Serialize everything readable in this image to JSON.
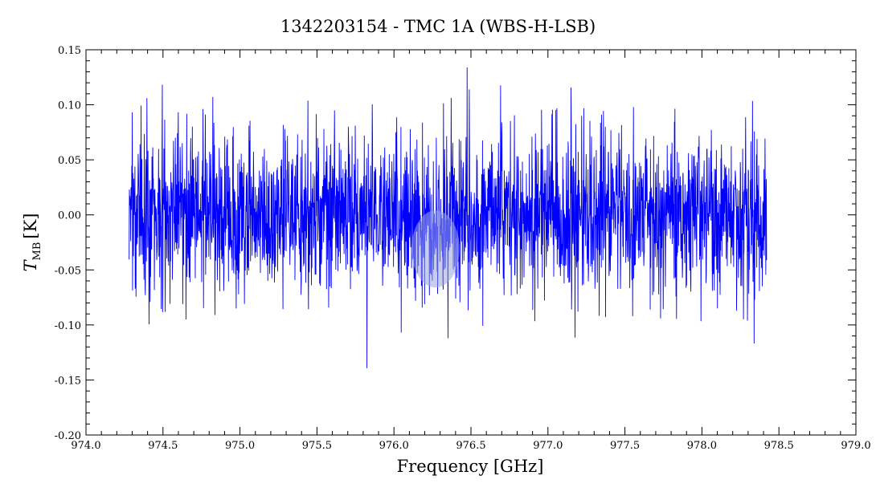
{
  "chart_data": {
    "type": "line",
    "title": "1342203154 - TMC 1A (WBS-H-LSB)",
    "xlabel": "Frequency [GHz]",
    "ylabel_main": "T",
    "ylabel_sub": "MB",
    "ylabel_unit": "[K]",
    "xlim": [
      974.0,
      979.0
    ],
    "ylim": [
      -0.2,
      0.15
    ],
    "xticks": [
      "974.0",
      "974.5",
      "975.0",
      "975.5",
      "976.0",
      "976.5",
      "977.0",
      "977.5",
      "978.0",
      "978.5",
      "979.0"
    ],
    "yticks": [
      "0.15",
      "0.10",
      "0.05",
      "0.00",
      "-0.05",
      "-0.10",
      "-0.15",
      "-0.20"
    ],
    "series": [
      {
        "color": "#0000ff",
        "x_start": 974.28,
        "x_end": 978.42,
        "points": 2400,
        "noise_rms": 0.038,
        "max": 0.134,
        "min": -0.152
      }
    ],
    "grid": false,
    "legend": "none",
    "highlight_color": "#9aa6d8"
  }
}
